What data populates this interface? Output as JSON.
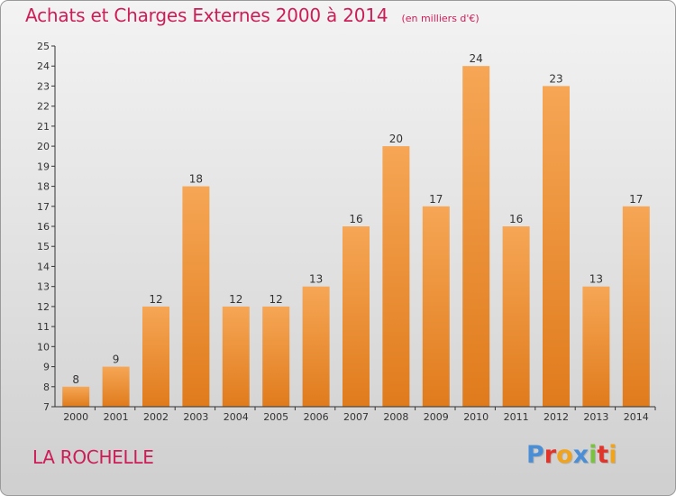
{
  "title": "Achats et Charges Externes 2000 à 2014",
  "subtitle": "(en milliers d'€)",
  "location": "LA ROCHELLE",
  "brand": {
    "text": "Proxiti",
    "letters": [
      {
        "char": "P",
        "color": "#4a8fd6"
      },
      {
        "char": "r",
        "color": "#e2342b"
      },
      {
        "char": "o",
        "color": "#f0a31d"
      },
      {
        "char": "x",
        "color": "#4a8fd6"
      },
      {
        "char": "i",
        "color": "#7cc242"
      },
      {
        "char": "t",
        "color": "#e2342b"
      },
      {
        "char": "i",
        "color": "#f0a31d"
      }
    ]
  },
  "colors": {
    "title": "#cd1d57",
    "bar_light": "#f6a655",
    "bar_dark": "#e07b1c",
    "axis": "#333333",
    "tick_text": "#333333"
  },
  "chart_data": {
    "type": "bar",
    "title": "Achats et Charges Externes 2000 à 2014",
    "subtitle": "(en milliers d'€)",
    "categories": [
      "2000",
      "2001",
      "2002",
      "2003",
      "2004",
      "2005",
      "2006",
      "2007",
      "2008",
      "2009",
      "2010",
      "2011",
      "2012",
      "2013",
      "2014"
    ],
    "values": [
      8,
      9,
      12,
      18,
      12,
      12,
      13,
      16,
      20,
      17,
      24,
      16,
      23,
      13,
      17
    ],
    "data_labels": [
      "8",
      "9",
      "12",
      "18",
      "12",
      "12",
      "13",
      "16",
      "20",
      "17",
      "24",
      "16",
      "23",
      "13",
      "17"
    ],
    "ylim": [
      7,
      25
    ],
    "yticks": [
      "7",
      "8",
      "9",
      "10",
      "11",
      "12",
      "13",
      "14",
      "15",
      "16",
      "17",
      "18",
      "19",
      "20",
      "21",
      "22",
      "23",
      "24",
      "25"
    ],
    "xlabel": "",
    "ylabel": "",
    "grid": false,
    "legend": "none"
  }
}
